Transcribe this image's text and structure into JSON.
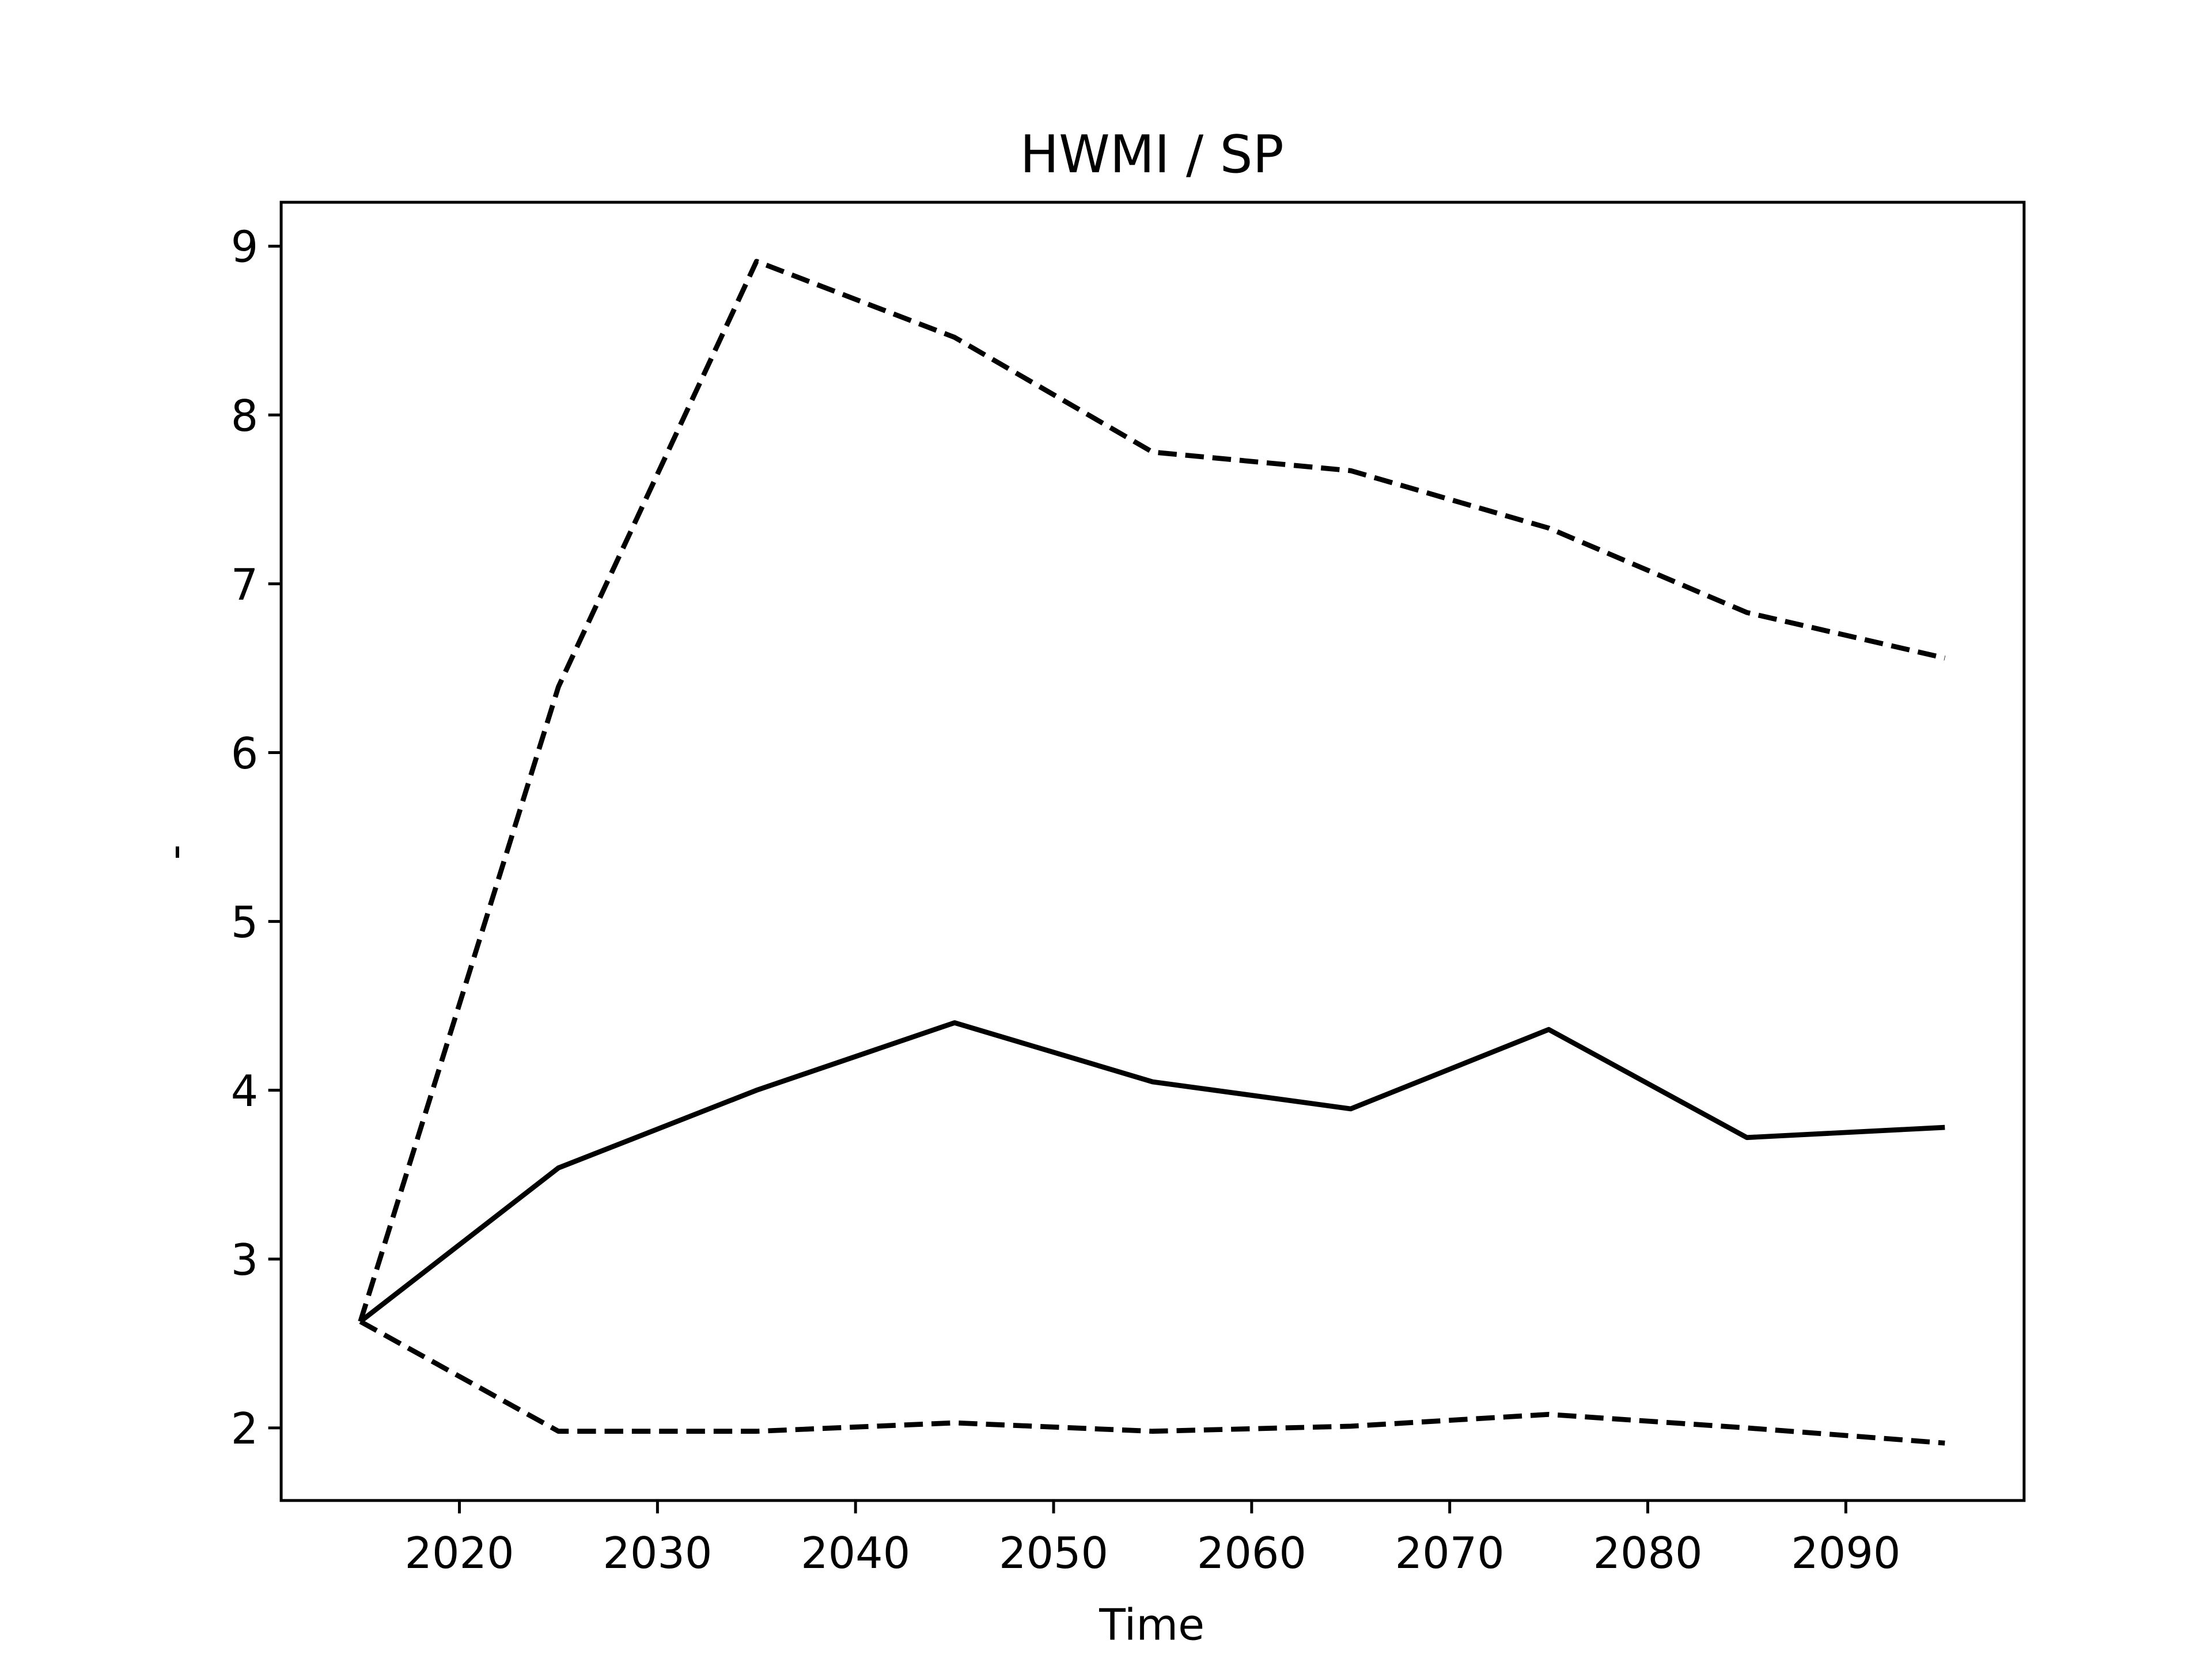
{
  "chart_data": {
    "type": "line",
    "title": "HWMI / SP",
    "xlabel": "Time",
    "ylabel": "-",
    "x": [
      2015,
      2025,
      2035,
      2045,
      2055,
      2065,
      2075,
      2085,
      2095
    ],
    "series": [
      {
        "color": "#000000",
        "linestyle": "solid",
        "values": [
          2.63,
          3.54,
          4.0,
          4.4,
          4.05,
          3.89,
          4.36,
          3.72,
          3.78
        ]
      },
      {
        "color": "#000000",
        "linestyle": "dashed",
        "values": [
          2.63,
          6.39,
          8.91,
          8.46,
          7.78,
          7.67,
          7.33,
          6.83,
          6.56
        ]
      },
      {
        "color": "#000000",
        "linestyle": "dashed",
        "values": [
          2.63,
          1.98,
          1.98,
          2.03,
          1.98,
          2.01,
          2.08,
          2.0,
          1.91
        ]
      }
    ],
    "xlim": [
      2011,
      2099
    ],
    "ylim": [
      1.57,
      9.26
    ],
    "xticks": [
      2020,
      2030,
      2040,
      2050,
      2060,
      2070,
      2080,
      2090
    ],
    "yticks": [
      2,
      3,
      4,
      5,
      6,
      7,
      8,
      9
    ],
    "grid": false
  }
}
